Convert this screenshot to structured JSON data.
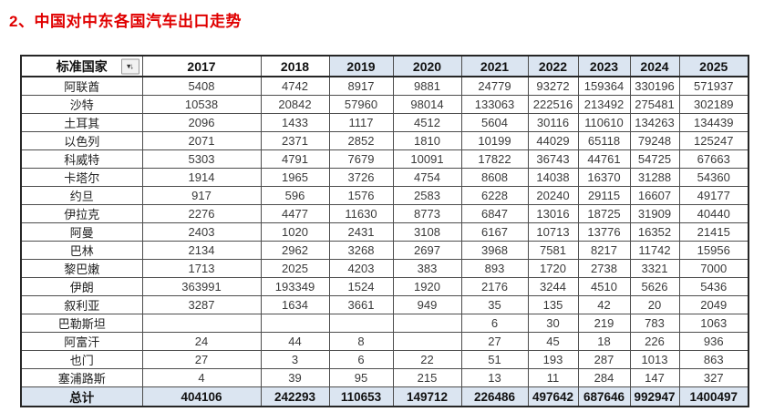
{
  "title": "2、中国对中东各国汽车出口走势",
  "colors": {
    "title": "#e00000",
    "header_highlight": "#dbe5f1",
    "total_row_background": "#dbe5f1",
    "grid_line": "#4d4d4d"
  },
  "table": {
    "country_header": "标准国家",
    "sort_icon": {
      "name": "sort-descending-icon",
      "glyph": "▾↓"
    },
    "year_columns": [
      "2017",
      "2018",
      "2019",
      "2020",
      "2021",
      "2022",
      "2023",
      "2024",
      "2025"
    ],
    "highlighted_year_columns": [
      "2019",
      "2020",
      "2021",
      "2022",
      "2023",
      "2024",
      "2025"
    ],
    "rows": [
      {
        "country": "阿联酋",
        "values": [
          "5408",
          "4742",
          "8917",
          "9881",
          "24779",
          "93272",
          "159364",
          "330196",
          "571937"
        ]
      },
      {
        "country": "沙特",
        "values": [
          "10538",
          "20842",
          "57960",
          "98014",
          "133063",
          "222516",
          "213492",
          "275481",
          "302189"
        ]
      },
      {
        "country": "土耳其",
        "values": [
          "2096",
          "1433",
          "1117",
          "4512",
          "5604",
          "30116",
          "110610",
          "134263",
          "134439"
        ]
      },
      {
        "country": "以色列",
        "values": [
          "2071",
          "2371",
          "2852",
          "1810",
          "10199",
          "44029",
          "65118",
          "79248",
          "125247"
        ]
      },
      {
        "country": "科威特",
        "values": [
          "5303",
          "4791",
          "7679",
          "10091",
          "17822",
          "36743",
          "44761",
          "54725",
          "67663"
        ]
      },
      {
        "country": "卡塔尔",
        "values": [
          "1914",
          "1965",
          "3726",
          "4754",
          "8608",
          "14038",
          "16370",
          "31288",
          "54360"
        ]
      },
      {
        "country": "约旦",
        "values": [
          "917",
          "596",
          "1576",
          "2583",
          "6228",
          "20240",
          "29115",
          "16607",
          "49177"
        ]
      },
      {
        "country": "伊拉克",
        "values": [
          "2276",
          "4477",
          "11630",
          "8773",
          "6847",
          "13016",
          "18725",
          "31909",
          "40440"
        ]
      },
      {
        "country": "阿曼",
        "values": [
          "2403",
          "1020",
          "2431",
          "3108",
          "6167",
          "10713",
          "13776",
          "16352",
          "21415"
        ]
      },
      {
        "country": "巴林",
        "values": [
          "2134",
          "2962",
          "3268",
          "2697",
          "3968",
          "7581",
          "8217",
          "11742",
          "15956"
        ]
      },
      {
        "country": "黎巴嫩",
        "values": [
          "1713",
          "2025",
          "4203",
          "383",
          "893",
          "1720",
          "2738",
          "3321",
          "7000"
        ]
      },
      {
        "country": "伊朗",
        "values": [
          "363991",
          "193349",
          "1524",
          "1920",
          "2176",
          "3244",
          "4510",
          "5626",
          "5436"
        ]
      },
      {
        "country": "叙利亚",
        "values": [
          "3287",
          "1634",
          "3661",
          "949",
          "35",
          "135",
          "42",
          "20",
          "2049"
        ]
      },
      {
        "country": "巴勒斯坦",
        "values": [
          "",
          "",
          "",
          "",
          "6",
          "30",
          "219",
          "783",
          "1063"
        ]
      },
      {
        "country": "阿富汗",
        "values": [
          "24",
          "44",
          "8",
          "",
          "27",
          "45",
          "18",
          "226",
          "936"
        ]
      },
      {
        "country": "也门",
        "values": [
          "27",
          "3",
          "6",
          "22",
          "51",
          "193",
          "287",
          "1013",
          "863"
        ]
      },
      {
        "country": "塞浦路斯",
        "values": [
          "4",
          "39",
          "95",
          "215",
          "13",
          "11",
          "284",
          "147",
          "327"
        ]
      }
    ],
    "total_row": {
      "label": "总计",
      "values": [
        "404106",
        "242293",
        "110653",
        "149712",
        "226486",
        "497642",
        "687646",
        "992947",
        "1400497"
      ]
    }
  },
  "chart_data": {
    "type": "table",
    "title": "2、中国对中东各国汽车出口走势",
    "columns": [
      "标准国家",
      "2017",
      "2018",
      "2019",
      "2020",
      "2021",
      "2022",
      "2023",
      "2024",
      "2025"
    ],
    "rows": [
      [
        "阿联酋",
        5408,
        4742,
        8917,
        9881,
        24779,
        93272,
        159364,
        330196,
        571937
      ],
      [
        "沙特",
        10538,
        20842,
        57960,
        98014,
        133063,
        222516,
        213492,
        275481,
        302189
      ],
      [
        "土耳其",
        2096,
        1433,
        1117,
        4512,
        5604,
        30116,
        110610,
        134263,
        134439
      ],
      [
        "以色列",
        2071,
        2371,
        2852,
        1810,
        10199,
        44029,
        65118,
        79248,
        125247
      ],
      [
        "科威特",
        5303,
        4791,
        7679,
        10091,
        17822,
        36743,
        44761,
        54725,
        67663
      ],
      [
        "卡塔尔",
        1914,
        1965,
        3726,
        4754,
        8608,
        14038,
        16370,
        31288,
        54360
      ],
      [
        "约旦",
        917,
        596,
        1576,
        2583,
        6228,
        20240,
        29115,
        16607,
        49177
      ],
      [
        "伊拉克",
        2276,
        4477,
        11630,
        8773,
        6847,
        13016,
        18725,
        31909,
        40440
      ],
      [
        "阿曼",
        2403,
        1020,
        2431,
        3108,
        6167,
        10713,
        13776,
        16352,
        21415
      ],
      [
        "巴林",
        2134,
        2962,
        3268,
        2697,
        3968,
        7581,
        8217,
        11742,
        15956
      ],
      [
        "黎巴嫩",
        1713,
        2025,
        4203,
        383,
        893,
        1720,
        2738,
        3321,
        7000
      ],
      [
        "伊朗",
        363991,
        193349,
        1524,
        1920,
        2176,
        3244,
        4510,
        5626,
        5436
      ],
      [
        "叙利亚",
        3287,
        1634,
        3661,
        949,
        35,
        135,
        42,
        20,
        2049
      ],
      [
        "巴勒斯坦",
        null,
        null,
        null,
        null,
        6,
        30,
        219,
        783,
        1063
      ],
      [
        "阿富汗",
        24,
        44,
        8,
        null,
        27,
        45,
        18,
        226,
        936
      ],
      [
        "也门",
        27,
        3,
        6,
        22,
        51,
        193,
        287,
        1013,
        863
      ],
      [
        "塞浦路斯",
        4,
        39,
        95,
        215,
        13,
        11,
        284,
        147,
        327
      ]
    ],
    "total": [
      "总计",
      404106,
      242293,
      110653,
      149712,
      226486,
      497642,
      687646,
      992947,
      1400497
    ]
  }
}
